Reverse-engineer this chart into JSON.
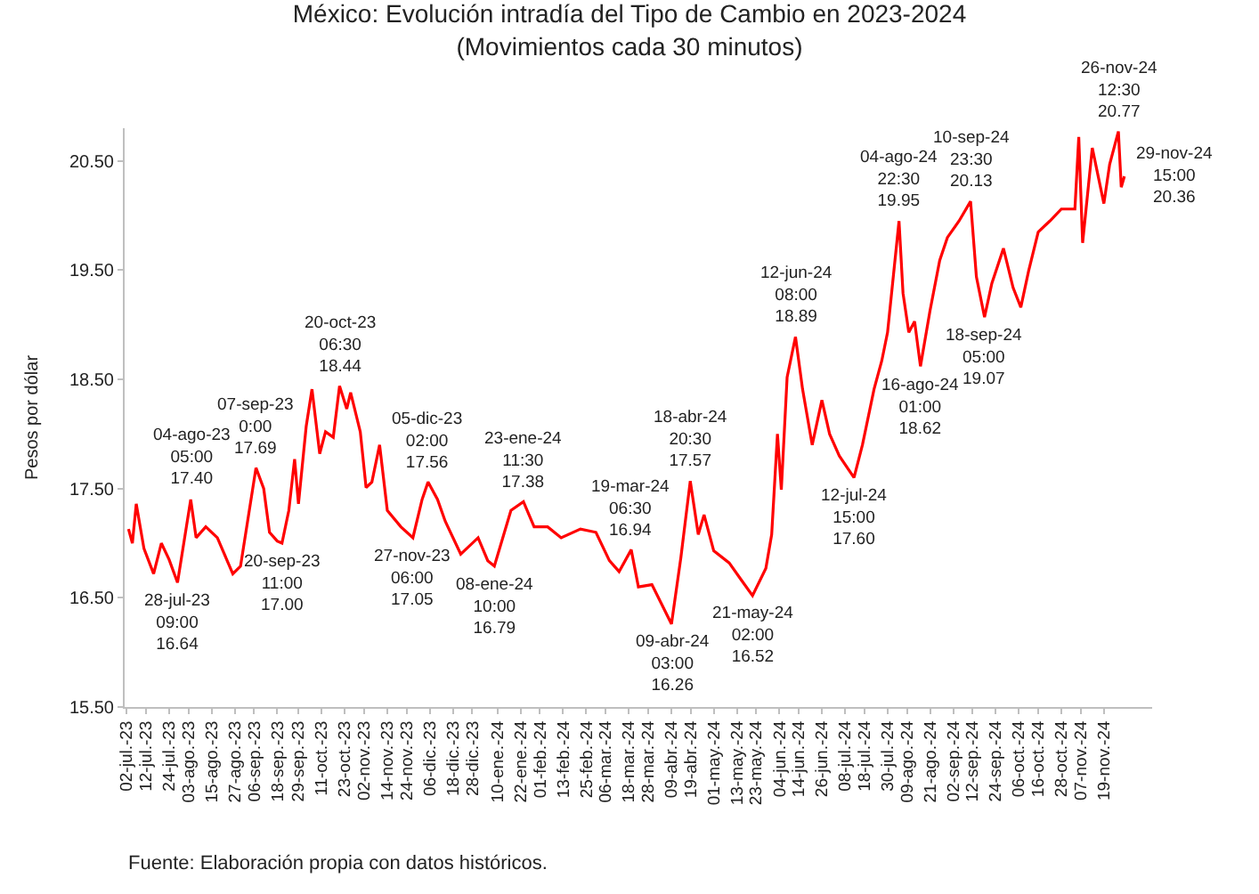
{
  "chart_data": {
    "type": "line",
    "title": "México: Evolución intradía del Tipo de Cambio en 2023-2024",
    "subtitle": "(Movimientos cada 30 minutos)",
    "ylabel": "Pesos por dólar",
    "x": [
      "2023-07-03",
      "2023-07-05",
      "2023-07-07",
      "2023-07-11",
      "2023-07-16",
      "2023-07-20",
      "2023-07-24",
      "2023-07-28T09:00",
      "2023-08-04T05:00",
      "2023-08-07",
      "2023-08-12",
      "2023-08-18",
      "2023-08-26",
      "2023-08-30",
      "2023-09-07T00:00",
      "2023-09-11",
      "2023-09-14",
      "2023-09-18",
      "2023-09-20T11:00",
      "2023-09-24",
      "2023-09-27",
      "2023-09-29",
      "2023-10-03",
      "2023-10-06",
      "2023-10-10",
      "2023-10-13",
      "2023-10-17",
      "2023-10-20T06:30",
      "2023-10-24",
      "2023-10-26",
      "2023-10-31",
      "2023-11-03",
      "2023-11-06",
      "2023-11-10",
      "2023-11-14",
      "2023-11-21",
      "2023-11-27T06:00",
      "2023-12-02",
      "2023-12-05T02:00",
      "2023-12-10",
      "2023-12-14",
      "2023-12-22",
      "2023-12-31",
      "2024-01-05",
      "2024-01-08T10:00",
      "2024-01-17",
      "2024-01-23T11:30",
      "2024-01-29",
      "2024-02-05",
      "2024-02-12",
      "2024-02-22",
      "2024-03-01",
      "2024-03-08",
      "2024-03-13",
      "2024-03-19T06:30",
      "2024-03-23",
      "2024-03-30",
      "2024-04-09T03:00",
      "2024-04-14",
      "2024-04-18T20:30",
      "2024-04-23",
      "2024-04-26",
      "2024-05-01",
      "2024-05-09",
      "2024-05-15",
      "2024-05-21T02:00",
      "2024-05-28",
      "2024-05-31",
      "2024-06-03",
      "2024-06-05",
      "2024-06-08",
      "2024-06-12T08:00",
      "2024-06-16",
      "2024-06-21",
      "2024-06-26",
      "2024-06-30",
      "2024-07-05",
      "2024-07-12T15:00",
      "2024-07-17",
      "2024-07-23",
      "2024-07-27",
      "2024-07-30",
      "2024-08-04T22:30",
      "2024-08-07",
      "2024-08-10",
      "2024-08-13",
      "2024-08-16T01:00",
      "2024-08-21",
      "2024-08-26",
      "2024-08-30",
      "2024-09-05",
      "2024-09-10T23:30",
      "2024-09-14",
      "2024-09-18T05:00",
      "2024-09-22",
      "2024-09-28",
      "2024-10-03",
      "2024-10-07",
      "2024-10-11",
      "2024-10-16",
      "2024-10-22",
      "2024-10-28",
      "2024-11-04",
      "2024-11-06",
      "2024-11-08",
      "2024-11-13",
      "2024-11-19",
      "2024-11-22",
      "2024-11-26T12:30",
      "2024-11-28",
      "2024-11-29T15:00"
    ],
    "series": [
      {
        "color": "#ff0000",
        "values": [
          17.13,
          17.0,
          17.36,
          16.95,
          16.72,
          17.0,
          16.85,
          16.64,
          17.4,
          17.05,
          17.15,
          17.05,
          16.72,
          16.79,
          17.69,
          17.5,
          17.1,
          17.02,
          17.0,
          17.3,
          17.77,
          17.36,
          18.07,
          18.41,
          17.82,
          18.02,
          17.97,
          18.44,
          18.23,
          18.38,
          18.02,
          17.51,
          17.56,
          17.9,
          17.3,
          17.15,
          17.05,
          17.4,
          17.56,
          17.4,
          17.2,
          16.9,
          17.05,
          16.84,
          16.79,
          17.3,
          17.38,
          17.15,
          17.15,
          17.05,
          17.13,
          17.1,
          16.84,
          16.74,
          16.94,
          16.6,
          16.62,
          16.26,
          16.87,
          17.57,
          17.08,
          17.26,
          16.93,
          16.82,
          16.67,
          16.52,
          16.77,
          17.08,
          18.0,
          17.49,
          18.52,
          18.89,
          18.41,
          17.9,
          18.31,
          18.0,
          17.8,
          17.6,
          17.9,
          18.41,
          18.67,
          18.93,
          19.95,
          19.29,
          18.93,
          19.03,
          18.62,
          19.13,
          19.59,
          19.8,
          19.95,
          20.13,
          19.44,
          19.07,
          19.38,
          19.7,
          19.34,
          19.16,
          19.49,
          19.85,
          19.95,
          20.06,
          20.06,
          20.72,
          19.75,
          20.62,
          20.11,
          20.47,
          20.77,
          20.26,
          20.36
        ]
      }
    ],
    "xlim": [
      "2023-07-01",
      "2024-12-14"
    ],
    "xticks": [
      {
        "value": "2023-07-02",
        "label": "02-jul.-23"
      },
      {
        "value": "2023-07-12",
        "label": "12-jul.-23"
      },
      {
        "value": "2023-07-24",
        "label": "24-jul.-23"
      },
      {
        "value": "2023-08-03",
        "label": "03-ago.-23"
      },
      {
        "value": "2023-08-15",
        "label": "15-ago.-23"
      },
      {
        "value": "2023-08-27",
        "label": "27-ago.-23"
      },
      {
        "value": "2023-09-06",
        "label": "06-sep.-23"
      },
      {
        "value": "2023-09-18",
        "label": "18-sep.-23"
      },
      {
        "value": "2023-09-29",
        "label": "29-sep.-23"
      },
      {
        "value": "2023-10-11",
        "label": "11-oct.-23"
      },
      {
        "value": "2023-10-23",
        "label": "23-oct.-23"
      },
      {
        "value": "2023-11-02",
        "label": "02-nov.-23"
      },
      {
        "value": "2023-11-14",
        "label": "14-nov.-23"
      },
      {
        "value": "2023-11-24",
        "label": "24-nov.-23"
      },
      {
        "value": "2023-12-06",
        "label": "06-dic.-23"
      },
      {
        "value": "2023-12-18",
        "label": "18-dic.-23"
      },
      {
        "value": "2023-12-28",
        "label": "28-dic.-23"
      },
      {
        "value": "2024-01-10",
        "label": "10-ene.-24"
      },
      {
        "value": "2024-01-22",
        "label": "22-ene.-24"
      },
      {
        "value": "2024-02-01",
        "label": "01-feb.-24"
      },
      {
        "value": "2024-02-13",
        "label": "13-feb.-24"
      },
      {
        "value": "2024-02-25",
        "label": "25-feb.-24"
      },
      {
        "value": "2024-03-06",
        "label": "06-mar.-24"
      },
      {
        "value": "2024-03-18",
        "label": "18-mar.-24"
      },
      {
        "value": "2024-03-28",
        "label": "28-mar.-24"
      },
      {
        "value": "2024-04-09",
        "label": "09-abr.-24"
      },
      {
        "value": "2024-04-19",
        "label": "19-abr.-24"
      },
      {
        "value": "2024-05-01",
        "label": "01-may.-24"
      },
      {
        "value": "2024-05-13",
        "label": "13-may.-24"
      },
      {
        "value": "2024-05-23",
        "label": "23-may.-24"
      },
      {
        "value": "2024-06-04",
        "label": "04-jun.-24"
      },
      {
        "value": "2024-06-14",
        "label": "14-jun.-24"
      },
      {
        "value": "2024-06-26",
        "label": "26-jun.-24"
      },
      {
        "value": "2024-07-08",
        "label": "08-jul.-24"
      },
      {
        "value": "2024-07-18",
        "label": "18-jul.-24"
      },
      {
        "value": "2024-07-30",
        "label": "30-jul.-24"
      },
      {
        "value": "2024-08-09",
        "label": "09-ago.-24"
      },
      {
        "value": "2024-08-21",
        "label": "21-ago.-24"
      },
      {
        "value": "2024-09-02",
        "label": "02-sep.-24"
      },
      {
        "value": "2024-09-12",
        "label": "12-sep.-24"
      },
      {
        "value": "2024-09-24",
        "label": "24-sep.-24"
      },
      {
        "value": "2024-10-06",
        "label": "06-oct.-24"
      },
      {
        "value": "2024-10-16",
        "label": "16-oct.-24"
      },
      {
        "value": "2024-10-28",
        "label": "28-oct.-24"
      },
      {
        "value": "2024-11-07",
        "label": "07-nov.-24"
      },
      {
        "value": "2024-11-19",
        "label": "19-nov.-24"
      }
    ],
    "ylim": [
      15.5,
      20.8
    ],
    "yticks": [
      {
        "value": 15.5,
        "label": "15.50"
      },
      {
        "value": 16.5,
        "label": "16.50"
      },
      {
        "value": 17.5,
        "label": "17.50"
      },
      {
        "value": 18.5,
        "label": "18.50"
      },
      {
        "value": 19.5,
        "label": "19.50"
      },
      {
        "value": 20.5,
        "label": "20.50"
      }
    ],
    "marker": "none",
    "line_style": "solid",
    "annotations": [
      {
        "text": "28-jul-23\n09:00\n16.64",
        "x": "2023-07-28T09:00",
        "y": 16.64
      },
      {
        "text": "04-ago-23\n05:00\n17.40",
        "x": "2023-08-04T05:00",
        "y": 17.4
      },
      {
        "text": "07-sep-23\n0:00\n17.69",
        "x": "2023-09-07T00:00",
        "y": 17.69
      },
      {
        "text": "20-sep-23\n11:00\n17.00",
        "x": "2023-09-20T11:00",
        "y": 17.0
      },
      {
        "text": "20-oct-23\n06:30\n18.44",
        "x": "2023-10-20T06:30",
        "y": 18.44
      },
      {
        "text": "27-nov-23\n06:00\n17.05",
        "x": "2023-11-27T06:00",
        "y": 17.05
      },
      {
        "text": "05-dic-23\n02:00\n17.56",
        "x": "2023-12-05T02:00",
        "y": 17.56
      },
      {
        "text": "08-ene-24\n10:00\n16.79",
        "x": "2024-01-08T10:00",
        "y": 16.79
      },
      {
        "text": "23-ene-24\n11:30\n17.38",
        "x": "2024-01-23T11:30",
        "y": 17.38
      },
      {
        "text": "19-mar-24\n06:30\n16.94",
        "x": "2024-03-19T06:30",
        "y": 16.94
      },
      {
        "text": "09-abr-24\n03:00\n16.26",
        "x": "2024-04-09T03:00",
        "y": 16.26
      },
      {
        "text": "18-abr-24\n20:30\n17.57",
        "x": "2024-04-18T20:30",
        "y": 17.57
      },
      {
        "text": "21-may-24\n02:00\n16.52",
        "x": "2024-05-21T02:00",
        "y": 16.52
      },
      {
        "text": "12-jun-24\n08:00\n18.89",
        "x": "2024-06-12T08:00",
        "y": 18.89
      },
      {
        "text": "12-jul-24\n15:00\n17.60",
        "x": "2024-07-12T15:00",
        "y": 17.6
      },
      {
        "text": "04-ago-24\n22:30\n19.95",
        "x": "2024-08-04T22:30",
        "y": 19.95
      },
      {
        "text": "16-ago-24\n01:00\n18.62",
        "x": "2024-08-16T01:00",
        "y": 18.62
      },
      {
        "text": "10-sep-24\n23:30\n20.13",
        "x": "2024-09-10T23:30",
        "y": 20.13
      },
      {
        "text": "18-sep-24\n05:00\n19.07",
        "x": "2024-09-18T05:00",
        "y": 19.07
      },
      {
        "text": "26-nov-24\n12:30\n20.77",
        "x": "2024-11-26T12:30",
        "y": 20.77
      },
      {
        "text": "29-nov-24\n15:00\n20.36",
        "x": "2024-11-29T15:00",
        "y": 20.36
      },
      "Fuente: Elaboración propia con datos históricos."
    ]
  }
}
